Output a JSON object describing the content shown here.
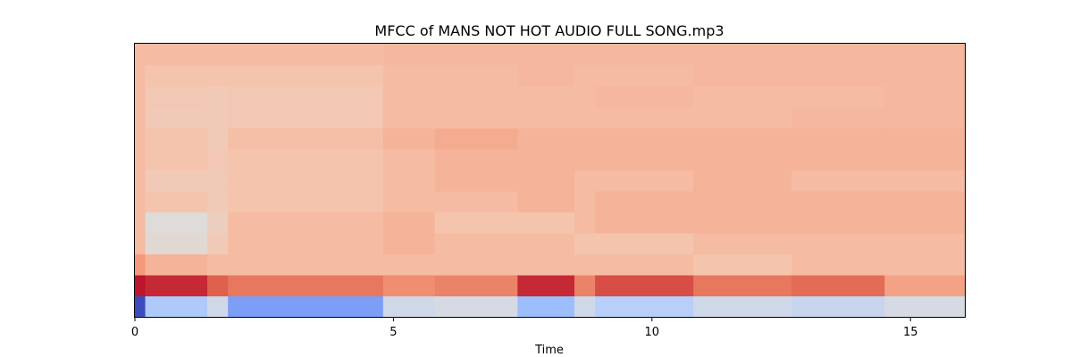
{
  "chart_data": {
    "type": "heatmap",
    "title": "MFCC of MANS NOT HOT AUDIO FULL SONG.mp3",
    "xlabel": "Time",
    "ylabel": "",
    "xlim": [
      0,
      16.05
    ],
    "x_ticks": [
      0,
      5,
      10,
      15
    ],
    "x_tick_labels": [
      "0",
      "5",
      "10",
      "15"
    ],
    "n_coefficients": 13,
    "colormap": "coolwarm",
    "grid": false,
    "legend": "none",
    "segments": [
      {
        "start": 0.0,
        "end": 0.2,
        "c1": -1.0,
        "c2": 0.95,
        "c3": 0.5,
        "c4": 0.3,
        "c5": 0.3,
        "c6": 0.3,
        "c7": 0.3,
        "c8": 0.3,
        "c9": 0.3,
        "c10": 0.3,
        "c11": 0.3,
        "c12": 0.3,
        "c13": 0.3
      },
      {
        "start": 0.2,
        "end": 1.4,
        "c1": -0.3,
        "c2": 0.9,
        "c3": 0.35,
        "c4": 0.05,
        "c5": 0.02,
        "c6": 0.25,
        "c7": 0.2,
        "c8": 0.25,
        "c9": 0.25,
        "c10": 0.2,
        "c11": 0.22,
        "c12": 0.25,
        "c13": 0.3
      },
      {
        "start": 1.4,
        "end": 1.8,
        "c1": -0.1,
        "c2": 0.75,
        "c3": 0.3,
        "c4": 0.2,
        "c5": 0.15,
        "c6": 0.2,
        "c7": 0.2,
        "c8": 0.22,
        "c9": 0.2,
        "c10": 0.2,
        "c11": 0.2,
        "c12": 0.25,
        "c13": 0.3
      },
      {
        "start": 1.8,
        "end": 4.8,
        "c1": -0.6,
        "c2": 0.65,
        "c3": 0.3,
        "c4": 0.3,
        "c5": 0.3,
        "c6": 0.25,
        "c7": 0.25,
        "c8": 0.25,
        "c9": 0.28,
        "c10": 0.22,
        "c11": 0.22,
        "c12": 0.25,
        "c13": 0.3
      },
      {
        "start": 4.8,
        "end": 5.8,
        "c1": -0.1,
        "c2": 0.55,
        "c3": 0.3,
        "c4": 0.35,
        "c5": 0.35,
        "c6": 0.3,
        "c7": 0.3,
        "c8": 0.3,
        "c9": 0.35,
        "c10": 0.3,
        "c11": 0.3,
        "c12": 0.3,
        "c13": 0.32
      },
      {
        "start": 5.8,
        "end": 7.4,
        "c1": -0.05,
        "c2": 0.6,
        "c3": 0.3,
        "c4": 0.3,
        "c5": 0.25,
        "c6": 0.3,
        "c7": 0.35,
        "c8": 0.35,
        "c9": 0.4,
        "c10": 0.3,
        "c11": 0.3,
        "c12": 0.3,
        "c13": 0.32
      },
      {
        "start": 7.4,
        "end": 8.5,
        "c1": -0.4,
        "c2": 0.9,
        "c3": 0.3,
        "c4": 0.3,
        "c5": 0.25,
        "c6": 0.35,
        "c7": 0.35,
        "c8": 0.35,
        "c9": 0.35,
        "c10": 0.3,
        "c11": 0.3,
        "c12": 0.32,
        "c13": 0.32
      },
      {
        "start": 8.5,
        "end": 8.9,
        "c1": -0.1,
        "c2": 0.6,
        "c3": 0.3,
        "c4": 0.25,
        "c5": 0.3,
        "c6": 0.3,
        "c7": 0.3,
        "c8": 0.35,
        "c9": 0.35,
        "c10": 0.3,
        "c11": 0.3,
        "c12": 0.3,
        "c13": 0.32
      },
      {
        "start": 8.9,
        "end": 10.8,
        "c1": -0.25,
        "c2": 0.8,
        "c3": 0.3,
        "c4": 0.25,
        "c5": 0.35,
        "c6": 0.35,
        "c7": 0.3,
        "c8": 0.35,
        "c9": 0.35,
        "c10": 0.3,
        "c11": 0.32,
        "c12": 0.3,
        "c13": 0.32
      },
      {
        "start": 10.8,
        "end": 12.7,
        "c1": -0.1,
        "c2": 0.65,
        "c3": 0.25,
        "c4": 0.3,
        "c5": 0.35,
        "c6": 0.35,
        "c7": 0.35,
        "c8": 0.35,
        "c9": 0.35,
        "c10": 0.3,
        "c11": 0.3,
        "c12": 0.32,
        "c13": 0.32
      },
      {
        "start": 12.7,
        "end": 14.5,
        "c1": -0.15,
        "c2": 0.7,
        "c3": 0.3,
        "c4": 0.3,
        "c5": 0.35,
        "c6": 0.35,
        "c7": 0.3,
        "c8": 0.35,
        "c9": 0.35,
        "c10": 0.32,
        "c11": 0.3,
        "c12": 0.32,
        "c13": 0.32
      },
      {
        "start": 14.5,
        "end": 16.05,
        "c1": -0.05,
        "c2": 0.45,
        "c3": 0.3,
        "c4": 0.3,
        "c5": 0.35,
        "c6": 0.35,
        "c7": 0.3,
        "c8": 0.35,
        "c9": 0.35,
        "c10": 0.32,
        "c11": 0.32,
        "c12": 0.32,
        "c13": 0.32
      }
    ]
  }
}
